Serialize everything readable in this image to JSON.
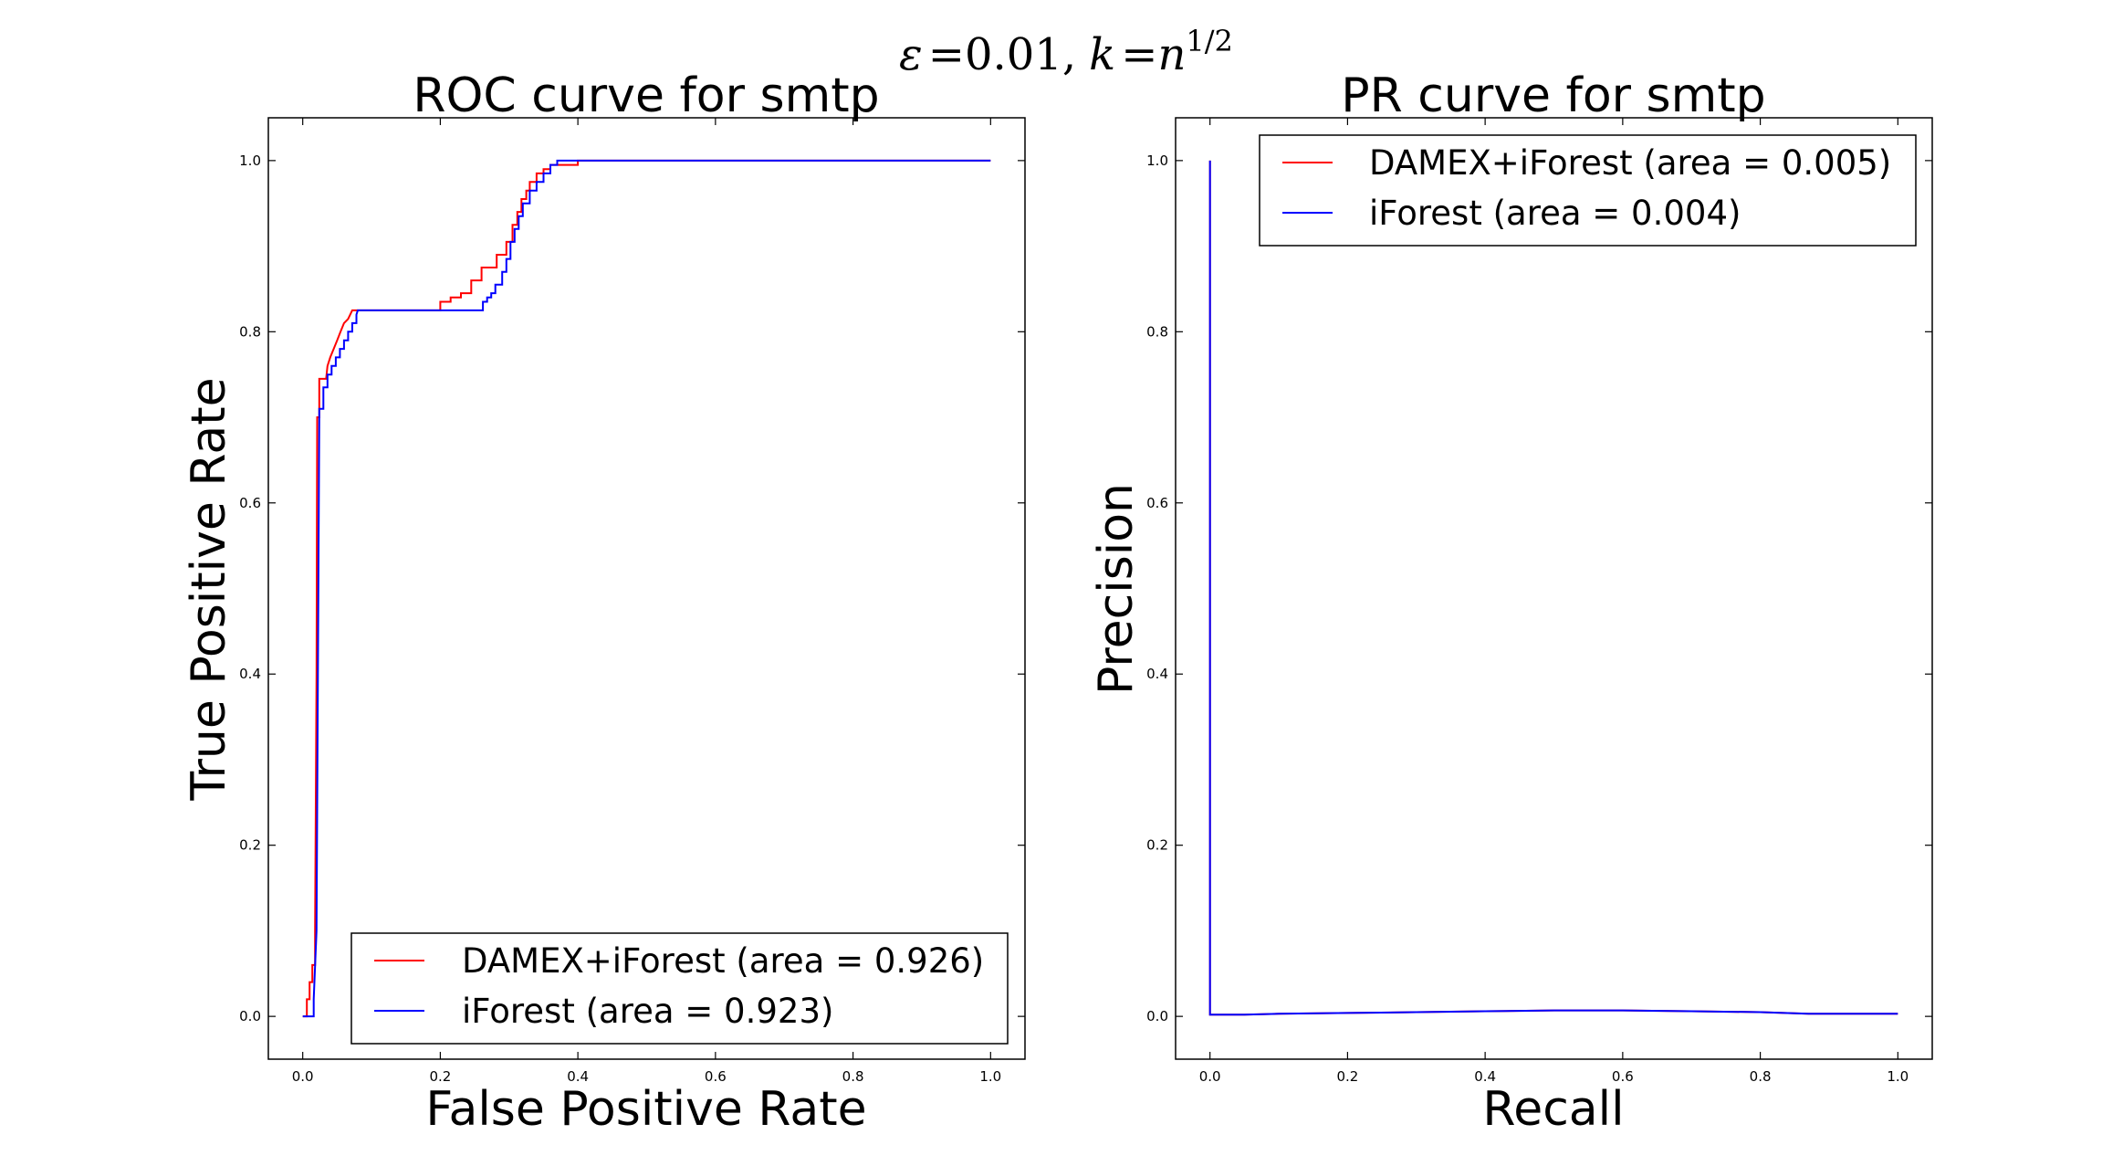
{
  "figure": {
    "suptitle": {
      "prefix": "ε",
      "eq1": "=",
      "value": "0.01,",
      "k": "k",
      "eq2": "=",
      "n": "n",
      "exponent": "1/2"
    }
  },
  "colors": {
    "series1": "#ff0000",
    "series2": "#0000ff",
    "axis": "#000000"
  },
  "chart_data": [
    {
      "type": "line",
      "title": "ROC curve for smtp",
      "xlabel": "False Positive Rate",
      "ylabel": "True Positive Rate",
      "xlim": [
        -0.05,
        1.05
      ],
      "ylim": [
        -0.05,
        1.05
      ],
      "xticks": [
        0.0,
        0.2,
        0.4,
        0.6,
        0.8,
        1.0
      ],
      "yticks": [
        0.0,
        0.2,
        0.4,
        0.6,
        0.8,
        1.0
      ],
      "xtick_labels": [
        "0.0",
        "0.2",
        "0.4",
        "0.6",
        "0.8",
        "1.0"
      ],
      "ytick_labels": [
        "0.0",
        "0.2",
        "0.4",
        "0.6",
        "0.8",
        "1.0"
      ],
      "legend_loc": "lower-right",
      "series": [
        {
          "name": "DAMEX+iForest (area = 0.926)",
          "color": "#ff0000",
          "x": [
            0.0,
            0.006,
            0.006,
            0.01,
            0.01,
            0.014,
            0.014,
            0.018,
            0.018,
            0.02,
            0.021,
            0.024,
            0.024,
            0.028,
            0.028,
            0.034,
            0.036,
            0.036,
            0.04,
            0.04,
            0.045,
            0.045,
            0.05,
            0.05,
            0.055,
            0.055,
            0.06,
            0.06,
            0.066,
            0.066,
            0.072,
            0.072,
            0.08,
            0.08,
            0.2,
            0.2,
            0.215,
            0.215,
            0.23,
            0.23,
            0.245,
            0.245,
            0.26,
            0.26,
            0.282,
            0.282,
            0.296,
            0.296,
            0.305,
            0.305,
            0.312,
            0.312,
            0.318,
            0.318,
            0.325,
            0.325,
            0.33,
            0.33,
            0.34,
            0.34,
            0.35,
            0.35,
            0.36,
            0.36,
            0.38,
            0.38,
            0.4,
            0.4,
            1.0
          ],
          "y": [
            0.0,
            0.0,
            0.02,
            0.02,
            0.04,
            0.04,
            0.06,
            0.06,
            0.1,
            0.4,
            0.7,
            0.7,
            0.745,
            0.745,
            0.745,
            0.745,
            0.76,
            0.76,
            0.77,
            0.77,
            0.78,
            0.78,
            0.79,
            0.79,
            0.8,
            0.8,
            0.81,
            0.81,
            0.815,
            0.815,
            0.825,
            0.825,
            0.825,
            0.825,
            0.825,
            0.835,
            0.835,
            0.84,
            0.84,
            0.845,
            0.845,
            0.86,
            0.86,
            0.875,
            0.875,
            0.89,
            0.89,
            0.905,
            0.905,
            0.925,
            0.925,
            0.94,
            0.94,
            0.955,
            0.955,
            0.965,
            0.965,
            0.975,
            0.975,
            0.985,
            0.985,
            0.99,
            0.99,
            0.995,
            0.995,
            0.995,
            0.995,
            1.0,
            1.0
          ]
        },
        {
          "name": "iForest (area = 0.923)",
          "color": "#0000ff",
          "x": [
            0.0,
            0.016,
            0.016,
            0.02,
            0.022,
            0.024,
            0.024,
            0.03,
            0.03,
            0.036,
            0.036,
            0.042,
            0.042,
            0.048,
            0.048,
            0.054,
            0.054,
            0.06,
            0.06,
            0.066,
            0.066,
            0.072,
            0.072,
            0.078,
            0.078,
            0.08,
            0.26,
            0.262,
            0.262,
            0.268,
            0.268,
            0.274,
            0.274,
            0.28,
            0.28,
            0.29,
            0.29,
            0.296,
            0.296,
            0.302,
            0.302,
            0.308,
            0.308,
            0.314,
            0.314,
            0.32,
            0.32,
            0.33,
            0.33,
            0.34,
            0.34,
            0.35,
            0.35,
            0.36,
            0.36,
            0.37,
            0.37,
            1.0
          ],
          "y": [
            0.0,
            0.0,
            0.02,
            0.1,
            0.4,
            0.7,
            0.71,
            0.71,
            0.735,
            0.735,
            0.75,
            0.75,
            0.76,
            0.76,
            0.77,
            0.77,
            0.78,
            0.78,
            0.79,
            0.79,
            0.8,
            0.8,
            0.81,
            0.81,
            0.82,
            0.825,
            0.825,
            0.825,
            0.835,
            0.835,
            0.84,
            0.84,
            0.845,
            0.845,
            0.855,
            0.855,
            0.87,
            0.87,
            0.885,
            0.885,
            0.905,
            0.905,
            0.92,
            0.92,
            0.935,
            0.935,
            0.95,
            0.95,
            0.965,
            0.965,
            0.975,
            0.975,
            0.985,
            0.985,
            0.995,
            0.995,
            1.0,
            1.0
          ]
        }
      ]
    },
    {
      "type": "line",
      "title": "PR curve for smtp",
      "xlabel": "Recall",
      "ylabel": "Precision",
      "xlim": [
        -0.05,
        1.05
      ],
      "ylim": [
        -0.05,
        1.05
      ],
      "xticks": [
        0.0,
        0.2,
        0.4,
        0.6,
        0.8,
        1.0
      ],
      "yticks": [
        0.0,
        0.2,
        0.4,
        0.6,
        0.8,
        1.0
      ],
      "xtick_labels": [
        "0.0",
        "0.2",
        "0.4",
        "0.6",
        "0.8",
        "1.0"
      ],
      "ytick_labels": [
        "0.0",
        "0.2",
        "0.4",
        "0.6",
        "0.8",
        "1.0"
      ],
      "legend_loc": "upper-right",
      "series": [
        {
          "name": "DAMEX+iForest (area = 0.005)",
          "color": "#ff0000",
          "x": [
            0.0,
            0.0,
            0.0,
            0.05,
            0.1,
            0.2,
            0.3,
            0.4,
            0.5,
            0.6,
            0.7,
            0.8,
            0.87,
            1.0
          ],
          "y": [
            1.0,
            0.5,
            0.002,
            0.002,
            0.003,
            0.004,
            0.005,
            0.006,
            0.007,
            0.007,
            0.006,
            0.005,
            0.003,
            0.003
          ]
        },
        {
          "name": "iForest (area = 0.004)",
          "color": "#0000ff",
          "x": [
            0.0,
            0.0,
            0.0,
            0.05,
            0.1,
            0.2,
            0.3,
            0.4,
            0.5,
            0.6,
            0.7,
            0.8,
            0.87,
            1.0
          ],
          "y": [
            1.0,
            0.5,
            0.002,
            0.002,
            0.003,
            0.004,
            0.005,
            0.006,
            0.007,
            0.007,
            0.006,
            0.005,
            0.003,
            0.003
          ]
        }
      ]
    }
  ]
}
